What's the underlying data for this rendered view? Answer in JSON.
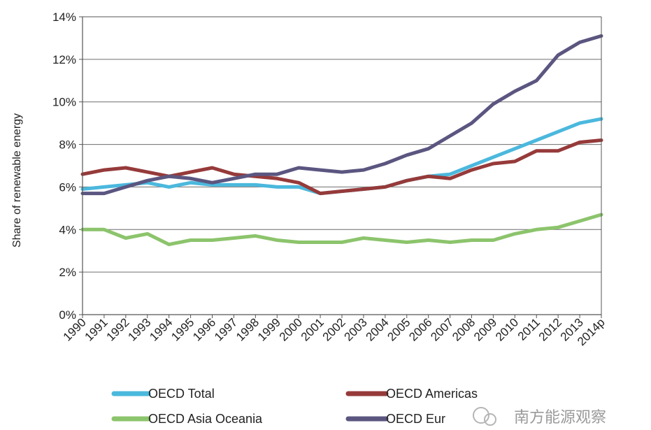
{
  "chart_data": {
    "type": "line",
    "ylabel": "Share of renewable energy",
    "xlabel": "",
    "ylim": [
      0,
      14
    ],
    "yticks": [
      0,
      2,
      4,
      6,
      8,
      10,
      12,
      14
    ],
    "ytick_labels": [
      "0%",
      "2%",
      "4%",
      "6%",
      "8%",
      "10%",
      "12%",
      "14%"
    ],
    "categories": [
      "1990",
      "1991",
      "1992",
      "1993",
      "1994",
      "1995",
      "1996",
      "1997",
      "1998",
      "1999",
      "2000",
      "2001",
      "2002",
      "2003",
      "2004",
      "2005",
      "2006",
      "2007",
      "2008",
      "2009",
      "2010",
      "2011",
      "2012",
      "2013",
      "2014p"
    ],
    "grid": "horizontal",
    "legend_position": "bottom",
    "series": [
      {
        "name": "OECD Total",
        "color": "#4bb8dd",
        "values": [
          5.9,
          6.0,
          6.1,
          6.2,
          6.0,
          6.2,
          6.1,
          6.1,
          6.1,
          6.0,
          6.0,
          5.7,
          5.8,
          5.9,
          6.0,
          6.3,
          6.5,
          6.6,
          7.0,
          7.4,
          7.8,
          8.2,
          8.6,
          9.0,
          9.2
        ]
      },
      {
        "name": "OECD Americas",
        "color": "#963a3a",
        "values": [
          6.6,
          6.8,
          6.9,
          6.7,
          6.5,
          6.7,
          6.9,
          6.6,
          6.5,
          6.4,
          6.2,
          5.7,
          5.8,
          5.9,
          6.0,
          6.3,
          6.5,
          6.4,
          6.8,
          7.1,
          7.2,
          7.7,
          7.7,
          8.1,
          8.2
        ]
      },
      {
        "name": "OECD Asia Oceania",
        "color": "#8cc46c",
        "values": [
          4.0,
          4.0,
          3.6,
          3.8,
          3.3,
          3.5,
          3.5,
          3.6,
          3.7,
          3.5,
          3.4,
          3.4,
          3.4,
          3.6,
          3.5,
          3.4,
          3.5,
          3.4,
          3.5,
          3.5,
          3.8,
          4.0,
          4.1,
          4.4,
          4.7
        ]
      },
      {
        "name": "OECD Eur",
        "color": "#5b5680",
        "values": [
          5.7,
          5.7,
          6.0,
          6.3,
          6.5,
          6.4,
          6.2,
          6.4,
          6.6,
          6.6,
          6.9,
          6.8,
          6.7,
          6.8,
          7.1,
          7.5,
          7.8,
          8.4,
          9.0,
          9.9,
          10.5,
          11.0,
          12.2,
          12.8,
          13.1
        ]
      }
    ]
  },
  "legend": {
    "items": [
      {
        "label": "OECD Total"
      },
      {
        "label": "OECD Americas"
      },
      {
        "label": "OECD Asia Oceania"
      },
      {
        "label": "OECD Eur"
      }
    ]
  },
  "watermark": {
    "text": "南方能源观察"
  }
}
